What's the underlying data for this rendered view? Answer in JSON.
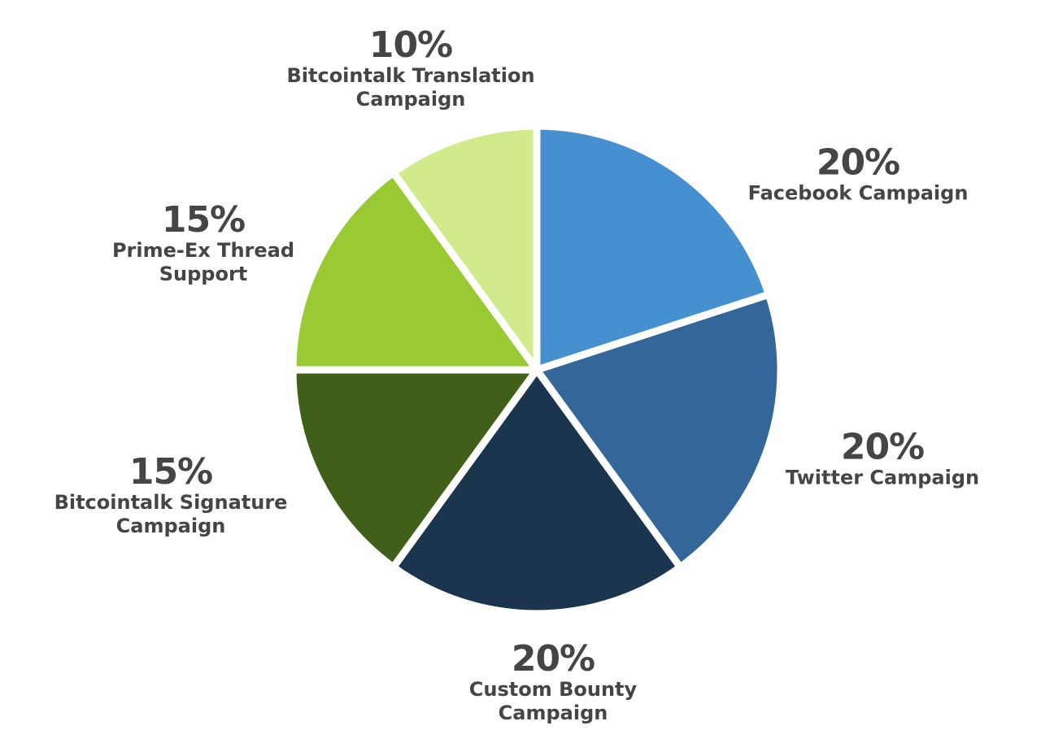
{
  "chart_data": {
    "type": "pie",
    "categories": [
      "Facebook Campaign",
      "Twitter Campaign",
      "Custom Bounty Campaign",
      "Bitcointalk Signature Campaign",
      "Prime-Ex Thread Support",
      "Bitcointalk Translation Campaign"
    ],
    "values": [
      20,
      20,
      20,
      15,
      15,
      10
    ],
    "value_labels": [
      "20%",
      "20%",
      "20%",
      "15%",
      "15%",
      "10%"
    ],
    "colors": [
      "#4690d0",
      "#336699",
      "#1c354f",
      "#40601a",
      "#9aca33",
      "#d0ea8c"
    ]
  }
}
